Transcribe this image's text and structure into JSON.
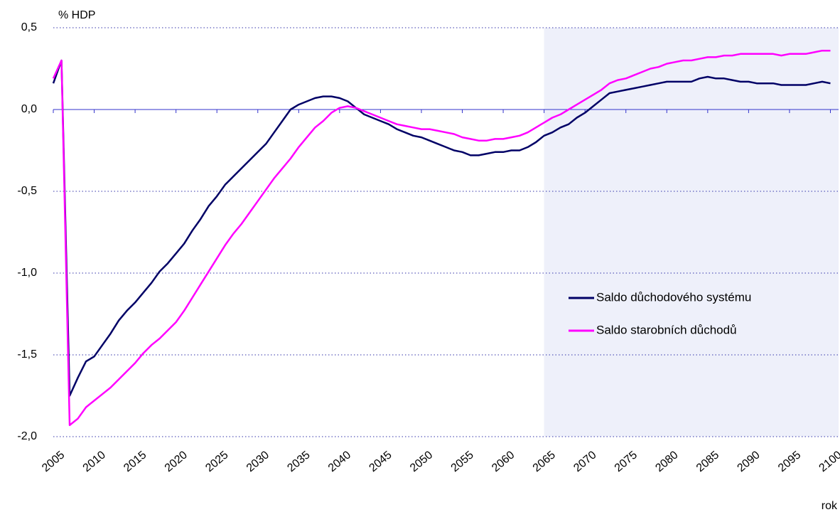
{
  "chart_data": {
    "type": "line",
    "ylabel": "% HDP",
    "xlabel": "rok",
    "x": [
      2005,
      2006,
      2007,
      2008,
      2009,
      2010,
      2011,
      2012,
      2013,
      2014,
      2015,
      2016,
      2017,
      2018,
      2019,
      2020,
      2021,
      2022,
      2023,
      2024,
      2025,
      2026,
      2027,
      2028,
      2029,
      2030,
      2031,
      2032,
      2033,
      2034,
      2035,
      2036,
      2037,
      2038,
      2039,
      2040,
      2041,
      2042,
      2043,
      2044,
      2045,
      2046,
      2047,
      2048,
      2049,
      2050,
      2051,
      2052,
      2053,
      2054,
      2055,
      2056,
      2057,
      2058,
      2059,
      2060,
      2061,
      2062,
      2063,
      2064,
      2065,
      2066,
      2067,
      2068,
      2069,
      2070,
      2071,
      2072,
      2073,
      2074,
      2075,
      2076,
      2077,
      2078,
      2079,
      2080,
      2081,
      2082,
      2083,
      2084,
      2085,
      2086,
      2087,
      2088,
      2089,
      2090,
      2091,
      2092,
      2093,
      2094,
      2095,
      2096,
      2097,
      2098,
      2099,
      2100
    ],
    "series": [
      {
        "name": "Saldo důchodového systému",
        "color": "#000066",
        "values": [
          0.16,
          0.3,
          -1.75,
          -1.64,
          -1.54,
          -1.51,
          -1.44,
          -1.37,
          -1.29,
          -1.23,
          -1.18,
          -1.12,
          -1.06,
          -0.99,
          -0.94,
          -0.88,
          -0.82,
          -0.74,
          -0.67,
          -0.59,
          -0.53,
          -0.46,
          -0.41,
          -0.36,
          -0.31,
          -0.26,
          -0.21,
          -0.14,
          -0.07,
          0.0,
          0.03,
          0.05,
          0.07,
          0.08,
          0.08,
          0.07,
          0.05,
          0.01,
          -0.03,
          -0.05,
          -0.07,
          -0.09,
          -0.12,
          -0.14,
          -0.16,
          -0.17,
          -0.19,
          -0.21,
          -0.23,
          -0.25,
          -0.26,
          -0.28,
          -0.28,
          -0.27,
          -0.26,
          -0.26,
          -0.25,
          -0.25,
          -0.23,
          -0.2,
          -0.16,
          -0.14,
          -0.11,
          -0.09,
          -0.05,
          -0.02,
          0.02,
          0.06,
          0.1,
          0.11,
          0.12,
          0.13,
          0.14,
          0.15,
          0.16,
          0.17,
          0.17,
          0.17,
          0.17,
          0.19,
          0.2,
          0.19,
          0.19,
          0.18,
          0.17,
          0.17,
          0.16,
          0.16,
          0.16,
          0.15,
          0.15,
          0.15,
          0.15,
          0.16,
          0.17,
          0.16
        ]
      },
      {
        "name": "Saldo starobních důchodů",
        "color": "#ff00ff",
        "values": [
          0.19,
          0.3,
          -1.93,
          -1.89,
          -1.82,
          -1.78,
          -1.74,
          -1.7,
          -1.65,
          -1.6,
          -1.55,
          -1.49,
          -1.44,
          -1.4,
          -1.35,
          -1.3,
          -1.23,
          -1.15,
          -1.07,
          -0.99,
          -0.91,
          -0.83,
          -0.76,
          -0.7,
          -0.63,
          -0.56,
          -0.49,
          -0.42,
          -0.36,
          -0.3,
          -0.23,
          -0.17,
          -0.11,
          -0.07,
          -0.02,
          0.01,
          0.02,
          0.01,
          -0.01,
          -0.03,
          -0.05,
          -0.07,
          -0.09,
          -0.1,
          -0.11,
          -0.12,
          -0.12,
          -0.13,
          -0.14,
          -0.15,
          -0.17,
          -0.18,
          -0.19,
          -0.19,
          -0.18,
          -0.18,
          -0.17,
          -0.16,
          -0.14,
          -0.11,
          -0.08,
          -0.05,
          -0.03,
          0.0,
          0.03,
          0.06,
          0.09,
          0.12,
          0.16,
          0.18,
          0.19,
          0.21,
          0.23,
          0.25,
          0.26,
          0.28,
          0.29,
          0.3,
          0.3,
          0.31,
          0.32,
          0.32,
          0.33,
          0.33,
          0.34,
          0.34,
          0.34,
          0.34,
          0.34,
          0.33,
          0.34,
          0.34,
          0.34,
          0.35,
          0.36,
          0.36
        ]
      }
    ],
    "xlim": [
      2005,
      2101
    ],
    "xticks": [
      2005,
      2010,
      2015,
      2020,
      2025,
      2030,
      2035,
      2040,
      2045,
      2050,
      2055,
      2060,
      2065,
      2070,
      2075,
      2080,
      2085,
      2090,
      2095,
      2100
    ],
    "ylim": [
      -2,
      0.5
    ],
    "yticks": [
      {
        "value": -2,
        "label": "-2,0"
      },
      {
        "value": -1.5,
        "label": "-1,5"
      },
      {
        "value": -1,
        "label": "-1,0"
      },
      {
        "value": -0.5,
        "label": "-0,5"
      },
      {
        "value": 0,
        "label": "0,0"
      },
      {
        "value": 0.5,
        "label": "0,5"
      }
    ],
    "grid": true,
    "legend": "right",
    "shaded_from": 2065,
    "shade_color": "#eef0fa"
  }
}
